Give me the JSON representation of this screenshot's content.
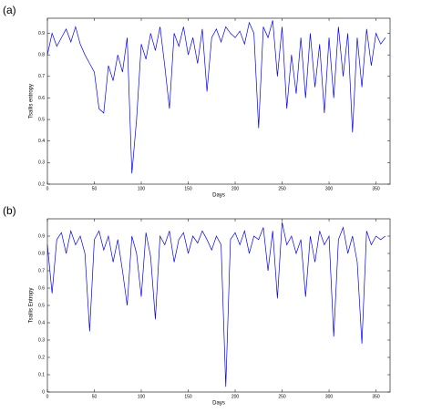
{
  "chart_data": [
    {
      "type": "line",
      "panel_label": "(a)",
      "x_label": "Days",
      "y_label": "Tsallis entropy",
      "xlim": [
        0,
        365
      ],
      "xticks": [
        0,
        50,
        100,
        150,
        200,
        250,
        300,
        350
      ],
      "ylim": [
        0.2,
        0.97
      ],
      "yticks": [
        0.2,
        0.3,
        0.4,
        0.5,
        0.6,
        0.7,
        0.8,
        0.9
      ],
      "series": [
        {
          "color": "#0000ff",
          "x": [
            0,
            5,
            10,
            15,
            20,
            25,
            30,
            35,
            40,
            45,
            50,
            55,
            60,
            65,
            70,
            75,
            80,
            85,
            90,
            95,
            100,
            105,
            110,
            115,
            120,
            125,
            130,
            135,
            140,
            145,
            150,
            155,
            160,
            165,
            170,
            175,
            180,
            185,
            190,
            195,
            200,
            205,
            210,
            215,
            220,
            225,
            230,
            235,
            240,
            245,
            250,
            255,
            260,
            265,
            270,
            275,
            280,
            285,
            290,
            295,
            300,
            305,
            310,
            315,
            320,
            325,
            330,
            335,
            340,
            345,
            350,
            355,
            360
          ],
          "values": [
            0.8,
            0.9,
            0.84,
            0.88,
            0.92,
            0.86,
            0.93,
            0.85,
            0.8,
            0.76,
            0.72,
            0.55,
            0.53,
            0.75,
            0.68,
            0.8,
            0.72,
            0.88,
            0.25,
            0.5,
            0.85,
            0.78,
            0.9,
            0.82,
            0.93,
            0.75,
            0.55,
            0.9,
            0.84,
            0.93,
            0.8,
            0.88,
            0.76,
            0.92,
            0.63,
            0.88,
            0.92,
            0.86,
            0.93,
            0.9,
            0.88,
            0.91,
            0.85,
            0.95,
            0.9,
            0.46,
            0.93,
            0.88,
            0.96,
            0.7,
            0.93,
            0.55,
            0.8,
            0.62,
            0.88,
            0.6,
            0.9,
            0.65,
            0.85,
            0.53,
            0.88,
            0.6,
            0.93,
            0.7,
            0.9,
            0.44,
            0.88,
            0.65,
            0.92,
            0.75,
            0.9,
            0.85,
            0.88
          ]
        }
      ]
    },
    {
      "type": "line",
      "panel_label": "(b)",
      "x_label": "Days",
      "y_label": "Tsallis Entropy",
      "xlim": [
        0,
        365
      ],
      "xticks": [
        0,
        50,
        100,
        150,
        200,
        250,
        300,
        350
      ],
      "ylim": [
        0,
        1.0
      ],
      "yticks": [
        0,
        0.1,
        0.2,
        0.3,
        0.4,
        0.5,
        0.6,
        0.7,
        0.8,
        0.9
      ],
      "series": [
        {
          "color": "#0000ff",
          "x": [
            0,
            5,
            10,
            15,
            20,
            25,
            30,
            35,
            40,
            45,
            50,
            55,
            60,
            65,
            70,
            75,
            80,
            85,
            90,
            95,
            100,
            105,
            110,
            115,
            120,
            125,
            130,
            135,
            140,
            145,
            150,
            155,
            160,
            165,
            170,
            175,
            180,
            185,
            190,
            195,
            200,
            205,
            210,
            215,
            220,
            225,
            230,
            235,
            240,
            245,
            250,
            255,
            260,
            265,
            270,
            275,
            280,
            285,
            290,
            295,
            300,
            305,
            310,
            315,
            320,
            325,
            330,
            335,
            340,
            345,
            350,
            355,
            360
          ],
          "values": [
            0.85,
            0.57,
            0.88,
            0.92,
            0.8,
            0.93,
            0.85,
            0.9,
            0.8,
            0.35,
            0.88,
            0.93,
            0.82,
            0.9,
            0.75,
            0.88,
            0.7,
            0.5,
            0.9,
            0.8,
            0.55,
            0.92,
            0.78,
            0.42,
            0.9,
            0.85,
            0.93,
            0.75,
            0.88,
            0.92,
            0.8,
            0.9,
            0.86,
            0.93,
            0.88,
            0.82,
            0.9,
            0.85,
            0.03,
            0.88,
            0.92,
            0.85,
            0.93,
            0.8,
            0.9,
            0.88,
            0.95,
            0.7,
            0.93,
            0.54,
            0.98,
            0.85,
            0.9,
            0.8,
            0.88,
            0.55,
            0.9,
            0.75,
            0.93,
            0.85,
            0.9,
            0.32,
            0.88,
            0.95,
            0.8,
            0.9,
            0.75,
            0.28,
            0.93,
            0.85,
            0.9,
            0.88,
            0.9
          ]
        }
      ]
    }
  ]
}
